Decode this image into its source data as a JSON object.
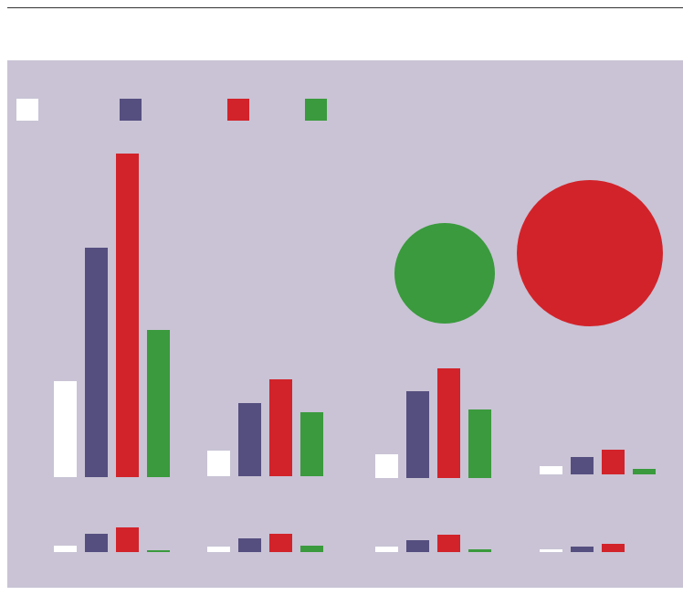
{
  "colors": {
    "background": "#c9c3d5",
    "rule": "#333333"
  },
  "legend": [
    {
      "color": "#ffffff",
      "label": ""
    },
    {
      "color": "#554f80",
      "label": ""
    },
    {
      "color": "#d2232a",
      "label": ""
    },
    {
      "color": "#3a9a3d",
      "label": ""
    }
  ],
  "chart_data": {
    "type": "bar",
    "title": "",
    "xlabel": "",
    "ylabel": "",
    "grid": false,
    "legend_position": "top-left",
    "series_colors": [
      "#ffffff",
      "#554f80",
      "#d2232a",
      "#3a9a3d"
    ],
    "upper_panels": [
      {
        "values": [
          105,
          251,
          354,
          161
        ]
      },
      {
        "values": [
          28,
          80,
          106,
          70
        ]
      },
      {
        "values": [
          26,
          95,
          120,
          75
        ]
      },
      {
        "values": [
          9,
          19,
          27,
          6
        ]
      }
    ],
    "lower_panels": [
      {
        "values": [
          7,
          20,
          27,
          2
        ]
      },
      {
        "values": [
          6,
          15,
          20,
          7
        ]
      },
      {
        "values": [
          6,
          13,
          19,
          3
        ]
      },
      {
        "values": [
          3,
          6,
          9,
          0
        ]
      }
    ],
    "bubbles": [
      {
        "color": "#3a9a3d",
        "value": 55
      },
      {
        "color": "#d2232a",
        "value": 80
      }
    ]
  }
}
